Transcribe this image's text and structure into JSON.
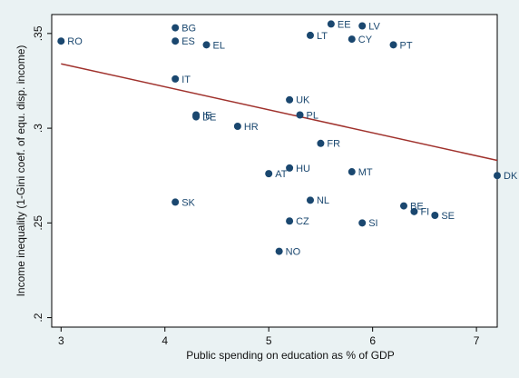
{
  "chart_data": {
    "type": "scatter",
    "xlabel": "Public spending on education as % of GDP",
    "ylabel": "Income inequality (1-Gini coef. of equ. disp. income)",
    "point_labels": [
      "RO",
      "BG",
      "ES",
      "EL",
      "IT",
      "EE",
      "LV",
      "LT",
      "CY",
      "PT",
      "UK",
      "PL",
      "IE",
      "DE",
      "HR",
      "FR",
      "HU",
      "AT",
      "MT",
      "DK",
      "SK",
      "NL",
      "BE",
      "FI",
      "SE",
      "CZ",
      "SI",
      "NO"
    ],
    "x": [
      3.0,
      4.1,
      4.1,
      4.4,
      4.1,
      5.6,
      5.9,
      5.4,
      5.8,
      6.2,
      5.2,
      5.3,
      4.3,
      4.3,
      4.7,
      5.5,
      5.2,
      5.0,
      5.8,
      7.2,
      4.1,
      5.4,
      6.3,
      6.4,
      6.6,
      5.2,
      5.9,
      5.1
    ],
    "y": [
      0.346,
      0.353,
      0.346,
      0.344,
      0.326,
      0.355,
      0.354,
      0.349,
      0.347,
      0.344,
      0.315,
      0.307,
      0.307,
      0.306,
      0.301,
      0.292,
      0.279,
      0.276,
      0.277,
      0.275,
      0.261,
      0.262,
      0.259,
      0.256,
      0.254,
      0.251,
      0.25,
      0.235
    ],
    "color": "#1a476f",
    "fit_line": {
      "x": [
        3.0,
        7.2
      ],
      "y": [
        0.334,
        0.283
      ],
      "color": "#a0322d"
    },
    "xlim": [
      2.91,
      7.2
    ],
    "ylim": [
      0.195,
      0.36
    ],
    "xticks": [
      3,
      4,
      5,
      6,
      7
    ],
    "yticks": [
      {
        "value": 0.2,
        "label": ".2"
      },
      {
        "value": 0.25,
        "label": ".25"
      },
      {
        "value": 0.3,
        "label": ".3"
      },
      {
        "value": 0.35,
        "label": ".35"
      }
    ]
  }
}
